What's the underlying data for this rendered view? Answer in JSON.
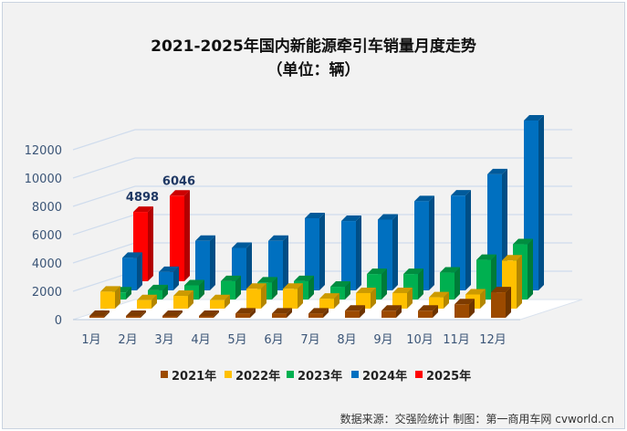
{
  "chart_data": {
    "type": "bar",
    "subtype": "3d-clustered",
    "title": "2021-2025年国内新能源牵引车销量月度走势",
    "subtitle": "（单位：辆）",
    "categories": [
      "1月",
      "2月",
      "3月",
      "4月",
      "5月",
      "6月",
      "7月",
      "8月",
      "9月",
      "10月",
      "11月",
      "12月"
    ],
    "y_ticks": [
      "0",
      "2000",
      "4000",
      "6000",
      "8000",
      "10000",
      "12000"
    ],
    "ylim": [
      0,
      12000
    ],
    "grid": true,
    "legend_position": "bottom",
    "series": [
      {
        "name": "2021年",
        "color": "#9c4a00",
        "values": [
          60,
          40,
          60,
          100,
          300,
          300,
          300,
          500,
          500,
          500,
          950,
          1800
        ]
      },
      {
        "name": "2022年",
        "color": "#ffc000",
        "values": [
          1200,
          600,
          900,
          600,
          1400,
          1400,
          700,
          1100,
          1100,
          800,
          1000,
          3400
        ]
      },
      {
        "name": "2023年",
        "color": "#00b050",
        "values": [
          500,
          650,
          1000,
          1300,
          1200,
          1300,
          900,
          1800,
          1800,
          1900,
          2800,
          3900
        ]
      },
      {
        "name": "2024年",
        "color": "#0070c0",
        "values": [
          2300,
          1300,
          3500,
          3000,
          3500,
          5100,
          4900,
          5000,
          6300,
          6700,
          8200,
          12000
        ]
      },
      {
        "name": "2025年",
        "color": "#ff0000",
        "values": [
          4898,
          6046,
          null,
          null,
          null,
          null,
          null,
          null,
          null,
          null,
          null,
          null
        ]
      }
    ],
    "data_labels": [
      {
        "series": "2025年",
        "category": "1月",
        "text": "4898"
      },
      {
        "series": "2025年",
        "category": "2月",
        "text": "6046"
      }
    ]
  },
  "source": "数据来源：交强险统计  制图：第一商用车网 cvworld.cn"
}
